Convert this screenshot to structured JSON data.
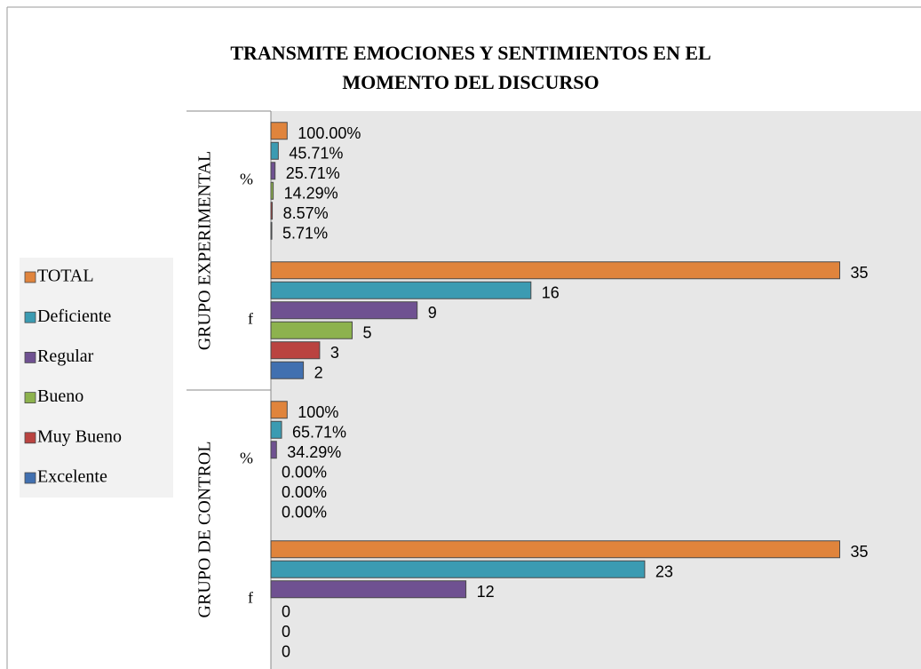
{
  "chart_data": {
    "type": "bar",
    "orientation": "horizontal",
    "title": "TRANSMITE EMOCIONES Y SENTIMIENTOS EN EL MOMENTO DEL DISCURSO",
    "groups": [
      "GRUPO EXPERIMENTAL",
      "GRUPO DE CONTROL"
    ],
    "categories": [
      "%",
      "f",
      "%",
      "f"
    ],
    "series": [
      {
        "name": "TOTAL",
        "color": "#e0843c",
        "values": [
          1,
          35,
          1,
          35
        ],
        "value_labels": [
          "100.00%",
          "35",
          "100%",
          "35"
        ]
      },
      {
        "name": "Deficiente",
        "color": "#3b9bb2",
        "values": [
          0.4571,
          16,
          0.6571,
          23
        ],
        "value_labels": [
          "45.71%",
          "16",
          "65.71%",
          "23"
        ]
      },
      {
        "name": "Regular",
        "color": "#6f5191",
        "values": [
          0.2571,
          9,
          0.3429,
          12
        ],
        "value_labels": [
          "25.71%",
          "9",
          "34.29%",
          "12"
        ]
      },
      {
        "name": "Bueno",
        "color": "#8db24e",
        "values": [
          0.1429,
          5,
          0,
          0
        ],
        "value_labels": [
          "14.29%",
          "5",
          "0.00%",
          "0"
        ]
      },
      {
        "name": "Muy Bueno",
        "color": "#ba4340",
        "values": [
          0.0857,
          3,
          0,
          0
        ],
        "value_labels": [
          "8.57%",
          "3",
          "0.00%",
          "0"
        ]
      },
      {
        "name": "Excelente",
        "color": "#4170b0",
        "values": [
          0.0571,
          2,
          0,
          0
        ],
        "value_labels": [
          "5.71%",
          "2",
          "0.00%",
          "0"
        ]
      }
    ],
    "xlim": [
      0,
      40
    ]
  }
}
